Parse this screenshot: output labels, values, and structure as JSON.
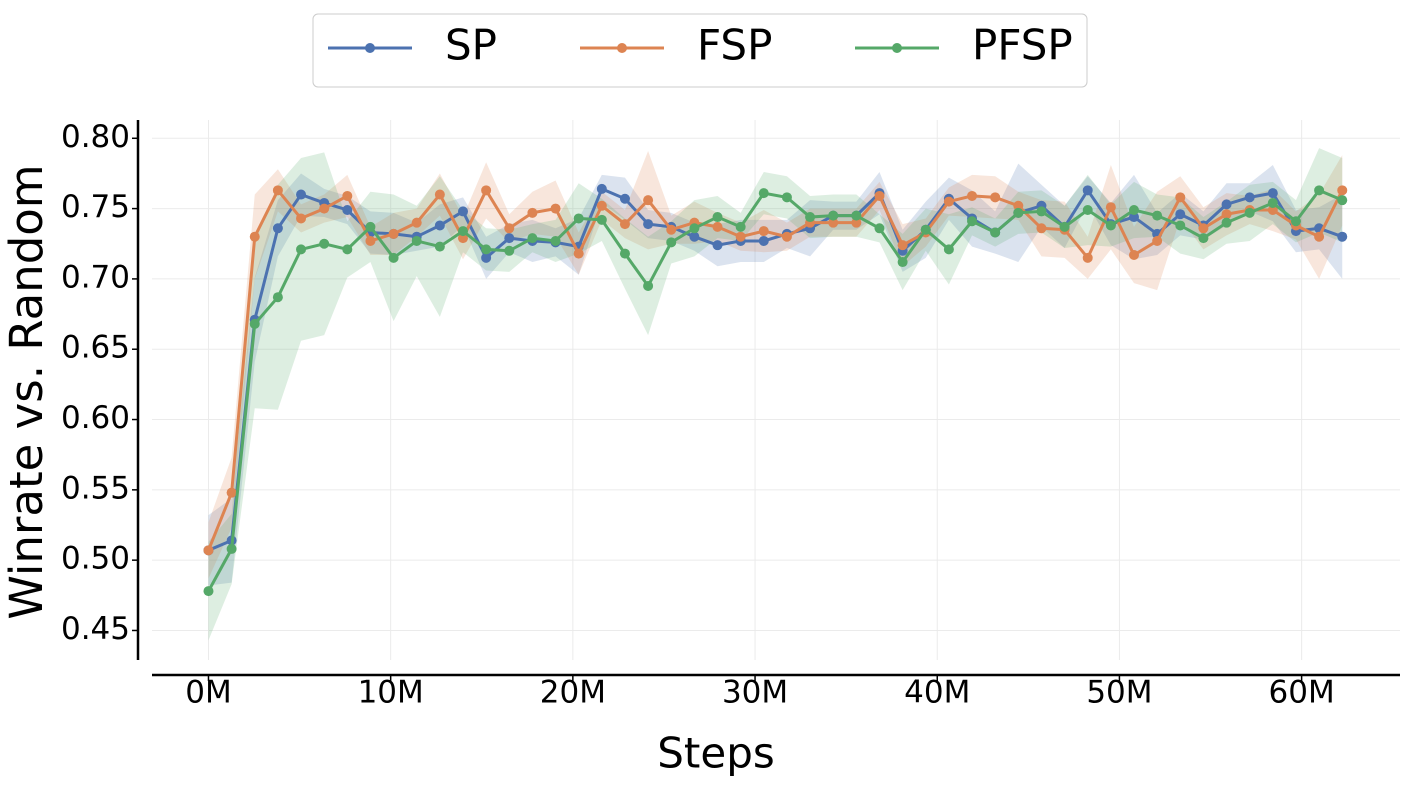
{
  "chart_data": {
    "type": "line",
    "x_label": "Steps",
    "y_label": "Winrate vs. Random",
    "x": [
      0,
      1.27,
      2.54,
      3.81,
      5.08,
      6.35,
      7.62,
      8.89,
      10.16,
      11.43,
      12.7,
      13.97,
      15.24,
      16.51,
      17.78,
      19.05,
      20.32,
      21.59,
      22.86,
      24.13,
      25.4,
      26.67,
      27.94,
      29.21,
      30.48,
      31.75,
      33.02,
      34.29,
      35.56,
      36.83,
      38.1,
      39.37,
      40.64,
      41.91,
      43.18,
      44.45,
      45.72,
      46.99,
      48.26,
      49.53,
      50.8,
      52.07,
      53.34,
      54.61,
      55.88,
      57.15,
      58.42,
      59.69,
      60.96,
      62.23
    ],
    "series": [
      {
        "name": "SP",
        "color": "#4c72b0",
        "values": [
          0.507,
          0.514,
          0.671,
          0.736,
          0.76,
          0.754,
          0.749,
          0.733,
          0.732,
          0.73,
          0.738,
          0.748,
          0.715,
          0.729,
          0.727,
          0.726,
          0.723,
          0.764,
          0.757,
          0.739,
          0.737,
          0.73,
          0.724,
          0.727,
          0.727,
          0.732,
          0.736,
          0.745,
          0.745,
          0.761,
          0.72,
          0.735,
          0.757,
          0.743,
          0.733,
          0.747,
          0.752,
          0.737,
          0.763,
          0.739,
          0.744,
          0.732,
          0.746,
          0.738,
          0.753,
          0.758,
          0.761,
          0.734,
          0.736,
          0.73
        ],
        "errors": [
          0.025,
          0.03,
          0.03,
          0.02,
          0.015,
          0.01,
          0.01,
          0.015,
          0.015,
          0.01,
          0.015,
          0.01,
          0.015,
          0.01,
          0.015,
          0.01,
          0.02,
          0.01,
          0.015,
          0.01,
          0.01,
          0.01,
          0.015,
          0.015,
          0.015,
          0.01,
          0.02,
          0.01,
          0.01,
          0.015,
          0.015,
          0.02,
          0.015,
          0.02,
          0.015,
          0.035,
          0.015,
          0.015,
          0.01,
          0.015,
          0.03,
          0.015,
          0.015,
          0.01,
          0.015,
          0.01,
          0.02,
          0.015,
          0.015,
          0.03
        ]
      },
      {
        "name": "FSP",
        "color": "#dd8452",
        "values": [
          0.507,
          0.548,
          0.73,
          0.763,
          0.743,
          0.75,
          0.759,
          0.727,
          0.732,
          0.74,
          0.76,
          0.729,
          0.763,
          0.736,
          0.747,
          0.75,
          0.718,
          0.752,
          0.739,
          0.756,
          0.735,
          0.74,
          0.737,
          0.73,
          0.734,
          0.73,
          0.74,
          0.74,
          0.74,
          0.759,
          0.724,
          0.733,
          0.755,
          0.759,
          0.758,
          0.752,
          0.736,
          0.735,
          0.715,
          0.751,
          0.717,
          0.727,
          0.758,
          0.736,
          0.746,
          0.749,
          0.749,
          0.738,
          0.73,
          0.763
        ],
        "errors": [
          0.02,
          0.025,
          0.03,
          0.015,
          0.01,
          0.01,
          0.015,
          0.01,
          0.015,
          0.01,
          0.015,
          0.015,
          0.02,
          0.01,
          0.015,
          0.02,
          0.015,
          0.01,
          0.01,
          0.035,
          0.01,
          0.015,
          0.01,
          0.01,
          0.015,
          0.01,
          0.01,
          0.01,
          0.01,
          0.01,
          0.015,
          0.01,
          0.01,
          0.015,
          0.015,
          0.01,
          0.02,
          0.02,
          0.015,
          0.03,
          0.02,
          0.035,
          0.015,
          0.015,
          0.015,
          0.01,
          0.015,
          0.01,
          0.03,
          0.025
        ]
      },
      {
        "name": "PFSP",
        "color": "#55a868",
        "values": [
          0.478,
          0.508,
          0.668,
          0.687,
          0.721,
          0.725,
          0.721,
          0.737,
          0.715,
          0.727,
          0.723,
          0.734,
          0.721,
          0.72,
          0.729,
          0.727,
          0.743,
          0.742,
          0.718,
          0.695,
          0.726,
          0.736,
          0.744,
          0.737,
          0.761,
          0.758,
          0.744,
          0.745,
          0.745,
          0.736,
          0.712,
          0.735,
          0.721,
          0.741,
          0.733,
          0.747,
          0.748,
          0.737,
          0.749,
          0.738,
          0.749,
          0.745,
          0.738,
          0.729,
          0.74,
          0.747,
          0.754,
          0.741,
          0.763,
          0.756
        ],
        "errors": [
          0.035,
          0.025,
          0.06,
          0.08,
          0.065,
          0.065,
          0.02,
          0.025,
          0.045,
          0.025,
          0.05,
          0.015,
          0.015,
          0.015,
          0.01,
          0.015,
          0.025,
          0.015,
          0.025,
          0.035,
          0.015,
          0.02,
          0.015,
          0.01,
          0.015,
          0.015,
          0.015,
          0.015,
          0.015,
          0.01,
          0.02,
          0.015,
          0.025,
          0.01,
          0.01,
          0.015,
          0.015,
          0.015,
          0.025,
          0.015,
          0.02,
          0.015,
          0.02,
          0.015,
          0.015,
          0.02,
          0.015,
          0.015,
          0.03,
          0.03
        ]
      }
    ],
    "xlim": [
      -3.1,
      65.4
    ],
    "xticks": [
      {
        "value": 0,
        "label": "0M"
      },
      {
        "value": 10,
        "label": "10M"
      },
      {
        "value": 20,
        "label": "20M"
      },
      {
        "value": 30,
        "label": "30M"
      },
      {
        "value": 40,
        "label": "40M"
      },
      {
        "value": 50,
        "label": "50M"
      },
      {
        "value": 60,
        "label": "60M"
      }
    ],
    "ylim": [
      0.429,
      0.813
    ],
    "yticks": [
      {
        "value": 0.45,
        "label": "0.45"
      },
      {
        "value": 0.5,
        "label": "0.50"
      },
      {
        "value": 0.55,
        "label": "0.55"
      },
      {
        "value": 0.6,
        "label": "0.60"
      },
      {
        "value": 0.65,
        "label": "0.65"
      },
      {
        "value": 0.7,
        "label": "0.70"
      },
      {
        "value": 0.75,
        "label": "0.75"
      },
      {
        "value": 0.8,
        "label": "0.80"
      }
    ],
    "grid": true,
    "legend": "top"
  }
}
